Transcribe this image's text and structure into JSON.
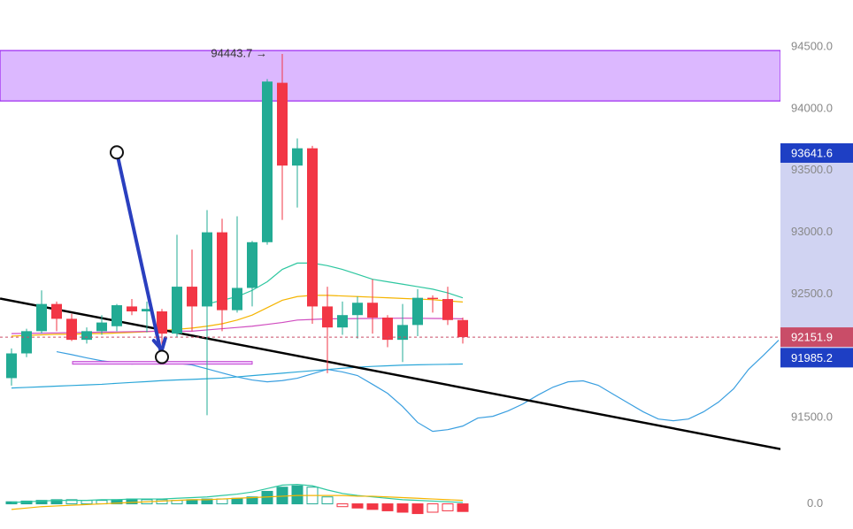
{
  "chart_data": [
    {
      "type": "candlestick",
      "categories": [
        null,
        null,
        null,
        null,
        null,
        null,
        null,
        null,
        null,
        null,
        null,
        null,
        null,
        null,
        null,
        null,
        null,
        null,
        null,
        null,
        null,
        null,
        null,
        null,
        null,
        null,
        null,
        null,
        null,
        null,
        null,
        null,
        null,
        null,
        null,
        null,
        null,
        null,
        null,
        null,
        null,
        null,
        null,
        null,
        null,
        null,
        null,
        null,
        null,
        null,
        null,
        null
      ],
      "open": [
        91820,
        92020,
        92200,
        92420,
        92300,
        92130,
        92200,
        92240,
        92400,
        92360,
        92360,
        92180,
        92560,
        92400,
        93000,
        92370,
        92550,
        92920,
        94210,
        93540,
        93680,
        92400,
        92230,
        92330,
        92430,
        92310,
        92130,
        92250,
        92470,
        92460,
        92290,
        null,
        null,
        null,
        null,
        null,
        null,
        null,
        null,
        null,
        null,
        null,
        null,
        null,
        null,
        null,
        null,
        null,
        null,
        null,
        null,
        null
      ],
      "high": [
        92060,
        92220,
        92530,
        92440,
        92340,
        92230,
        92330,
        92420,
        92460,
        92440,
        92380,
        92980,
        92860,
        93180,
        93110,
        93130,
        92930,
        94240,
        94443.7,
        93760,
        93700,
        92560,
        92440,
        92480,
        92620,
        92330,
        92420,
        92540,
        92490,
        92560,
        92310,
        null,
        null,
        null,
        null,
        null,
        null,
        null,
        null,
        null,
        null,
        null,
        null,
        null,
        null,
        null,
        null,
        null,
        null,
        null,
        null,
        null
      ],
      "low": [
        91760,
        91990,
        92180,
        92200,
        92120,
        92100,
        92170,
        92200,
        92330,
        92190,
        92090,
        92150,
        92200,
        91520,
        92200,
        92350,
        92400,
        92900,
        93100,
        93200,
        92260,
        91860,
        92170,
        92140,
        92180,
        92070,
        91950,
        92160,
        92350,
        92250,
        92100,
        null,
        null,
        null,
        null,
        null,
        null,
        null,
        null,
        null,
        null,
        null,
        null,
        null,
        null,
        null,
        null,
        null,
        null,
        null,
        null,
        null
      ],
      "close": [
        92020,
        92200,
        92420,
        92300,
        92130,
        92200,
        92270,
        92410,
        92360,
        92380,
        92180,
        92560,
        92400,
        93000,
        92370,
        92550,
        92920,
        94220,
        93540,
        93680,
        92400,
        92230,
        92330,
        92430,
        92310,
        92130,
        92250,
        92470,
        92460,
        92290,
        92151.9,
        null,
        null,
        null,
        null,
        null,
        null,
        null,
        null,
        null,
        null,
        null,
        null,
        null,
        null,
        null,
        null,
        null,
        null,
        null,
        null,
        null
      ],
      "up_color": "#22ab94",
      "down_color": "#f23645",
      "series": [
        {
          "color": "#3a9fe0",
          "values": [
            null,
            null,
            null,
            92034,
            92010,
            91984,
            91960,
            91945,
            91934,
            91940,
            91948,
            91940,
            91927,
            91895,
            91862,
            91830,
            91805,
            91790,
            91800,
            91819,
            91855,
            91891,
            91870,
            91841,
            91770,
            91697,
            91590,
            91461,
            91389,
            91403,
            91432,
            91497,
            91511,
            91554,
            91611,
            91683,
            91747,
            91790,
            91798,
            91762,
            91690,
            91618,
            91547,
            91489,
            91475,
            91489,
            91547,
            91626,
            91733,
            91891,
            92006,
            92127
          ]
        },
        {
          "color": "#2aa6d8",
          "values": [
            91740,
            91745,
            91750,
            91755,
            91760,
            91765,
            91770,
            91778,
            91785,
            91792,
            91800,
            91805,
            91810,
            91815,
            91820,
            91830,
            91840,
            91850,
            91860,
            91870,
            91880,
            91890,
            91900,
            91908,
            91915,
            91920,
            91925,
            91928,
            91930,
            91932,
            91934,
            null,
            null,
            null,
            null,
            null,
            null,
            null,
            null,
            null,
            null,
            null,
            null,
            null,
            null,
            null,
            null,
            null,
            null,
            null,
            null,
            null
          ]
        },
        {
          "color": "#2ec7a0",
          "values": [
            null,
            null,
            null,
            null,
            null,
            null,
            null,
            null,
            null,
            null,
            null,
            null,
            null,
            92420,
            92450,
            92480,
            92530,
            92600,
            92700,
            92751,
            92751,
            92730,
            92700,
            92660,
            92620,
            92600,
            92580,
            92560,
            92540,
            92510,
            92470,
            null,
            null,
            null,
            null,
            null,
            null,
            null,
            null,
            null,
            null,
            null,
            null,
            null,
            null,
            null,
            null,
            null,
            null,
            null,
            null,
            null
          ]
        },
        {
          "color": "#f5b400",
          "values": [
            92160,
            92165,
            92170,
            92175,
            92175,
            92180,
            92180,
            92185,
            92190,
            92195,
            92205,
            92215,
            92225,
            92240,
            92260,
            92290,
            92330,
            92390,
            92450,
            92480,
            92490,
            92490,
            92485,
            92480,
            92475,
            92470,
            92465,
            92460,
            92455,
            92445,
            92436,
            null,
            null,
            null,
            null,
            null,
            null,
            null,
            null,
            null,
            null,
            null,
            null,
            null,
            null,
            null,
            null,
            null,
            null,
            null,
            null,
            null
          ]
        },
        {
          "color": "#d04cc0",
          "values": [
            92180,
            92182,
            92184,
            92186,
            92188,
            92190,
            92192,
            92194,
            92196,
            92198,
            92200,
            92200,
            92200,
            92210,
            92220,
            92230,
            92240,
            92255,
            92270,
            92290,
            92295,
            92300,
            92300,
            92302,
            92303,
            92304,
            92305,
            92304,
            92303,
            92302,
            92300,
            null,
            null,
            null,
            null,
            null,
            null,
            null,
            null,
            null,
            null,
            null,
            null,
            null,
            null,
            null,
            null,
            null,
            null,
            null,
            null,
            null
          ]
        }
      ],
      "ylim": [
        91050,
        94880
      ],
      "yticks": [
        {
          "value": 91500,
          "label": "91500.0"
        },
        {
          "value": 92500,
          "label": "92500.0"
        },
        {
          "value": 93000,
          "label": "93000.0"
        },
        {
          "value": 93500,
          "label": "93500.0"
        },
        {
          "value": 94000,
          "label": "94000.0"
        },
        {
          "value": 94500,
          "label": "94500.0"
        }
      ],
      "zone": [
        94063,
        94471
      ],
      "zone_color": "#dcb8ff",
      "zone_edge": "#9c27f0",
      "trendline": {
        "x": [
          -0.76,
          51.12
        ],
        "y": [
          92464,
          91246
        ],
        "color": "#000000"
      },
      "arrow": {
        "x": [
          7,
          10
        ],
        "y": [
          93647,
          91991
        ],
        "color": "#2a3fbf"
      },
      "segment": {
        "x": [
          4.06,
          16
        ],
        "y": [
          91940,
          91940
        ],
        "color": "#c040d0"
      },
      "annotation": "94443.7 →",
      "price_tags": [
        {
          "value": 93641.6,
          "color": "#1e3fc4"
        },
        {
          "value": 92151.9,
          "color": "#c94d68"
        },
        {
          "value": 91985.2,
          "color": "#1e3fc4"
        }
      ],
      "range_color": "#d0d3f2"
    },
    {
      "type": "bar",
      "categories": [
        null,
        null,
        null,
        null,
        null,
        null,
        null,
        null,
        null,
        null,
        null,
        null,
        null,
        null,
        null,
        null,
        null,
        null,
        null,
        null,
        null,
        null,
        null,
        null,
        null,
        null,
        null,
        null,
        null,
        null,
        null
      ],
      "values": [
        3,
        4,
        5,
        6,
        6,
        5,
        5,
        6,
        7,
        6,
        6,
        5,
        6,
        7,
        7,
        8,
        10,
        18,
        24,
        26,
        24,
        10,
        -4,
        -6,
        -8,
        -10,
        -12,
        -14,
        -12,
        -10,
        -11
      ],
      "up_color": "#22ab94",
      "down_color": "#f23645",
      "series": [
        {
          "color": "#2ec7a0",
          "values": [
            2,
            3,
            4,
            5,
            5,
            5,
            6,
            6,
            7,
            7,
            7,
            8,
            9,
            10,
            12,
            14,
            17,
            22,
            27,
            28,
            26,
            20,
            15,
            12,
            10,
            8,
            6,
            5,
            4,
            3,
            2
          ]
        },
        {
          "color": "#f5b400",
          "values": [
            -8,
            -6,
            -4,
            -3,
            -2,
            -1,
            0,
            1,
            2,
            3,
            4,
            5,
            6,
            6,
            7,
            8,
            9,
            10,
            11,
            12,
            12,
            12,
            12,
            11,
            11,
            10,
            9,
            8,
            7,
            6,
            5
          ]
        }
      ],
      "ylim": [
        -26,
        44
      ],
      "yticks": [
        {
          "value": 0,
          "label": "0.0"
        }
      ]
    }
  ]
}
